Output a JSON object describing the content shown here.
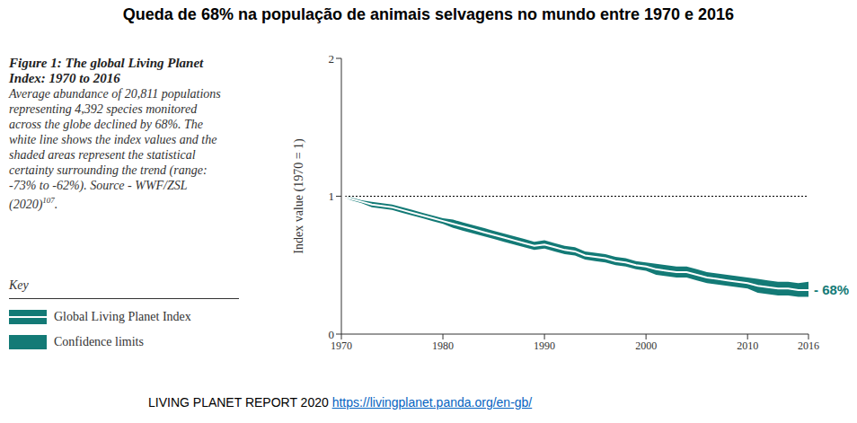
{
  "chart_data": {
    "type": "line",
    "title": "Queda de 68% na população de animais selvagens no mundo entre 1970 e 2016",
    "caption": {
      "heading": "Figure 1: The global Living Planet Index: 1970 to 2016",
      "text": "Average abundance of 20,811 populations representing 4,392 species monitored across the globe declined by 68%. The white line shows the index values and the shaded areas represent the statistical certainty surrounding the trend (range: -73% to -62%). Source - WWF/ZSL (2020)",
      "reference": "107",
      "end": "."
    },
    "key_title": "Key",
    "y_label": "Index value (1970 = 1)",
    "x": [
      1970,
      1971,
      1972,
      1973,
      1974,
      1975,
      1976,
      1977,
      1978,
      1979,
      1980,
      1981,
      1982,
      1983,
      1984,
      1985,
      1986,
      1987,
      1988,
      1989,
      1990,
      1991,
      1992,
      1993,
      1994,
      1995,
      1996,
      1997,
      1998,
      1999,
      2000,
      2001,
      2002,
      2003,
      2004,
      2005,
      2006,
      2007,
      2008,
      2009,
      2010,
      2011,
      2012,
      2013,
      2014,
      2015,
      2016
    ],
    "series": [
      {
        "name": "Global Living Planet Index",
        "type": "line",
        "color": "#ffffff",
        "values": [
          1.0,
          0.98,
          0.96,
          0.94,
          0.93,
          0.92,
          0.9,
          0.88,
          0.86,
          0.84,
          0.82,
          0.8,
          0.78,
          0.76,
          0.74,
          0.72,
          0.7,
          0.68,
          0.66,
          0.64,
          0.65,
          0.63,
          0.61,
          0.6,
          0.57,
          0.56,
          0.55,
          0.53,
          0.52,
          0.5,
          0.49,
          0.47,
          0.46,
          0.45,
          0.45,
          0.43,
          0.41,
          0.4,
          0.39,
          0.38,
          0.37,
          0.35,
          0.34,
          0.33,
          0.33,
          0.32,
          0.32
        ]
      },
      {
        "name": "Confidence limits",
        "type": "area",
        "color": "#137a76",
        "lower": [
          1.0,
          0.97,
          0.95,
          0.92,
          0.91,
          0.9,
          0.88,
          0.86,
          0.84,
          0.82,
          0.8,
          0.77,
          0.75,
          0.73,
          0.71,
          0.69,
          0.67,
          0.65,
          0.63,
          0.61,
          0.62,
          0.6,
          0.58,
          0.57,
          0.54,
          0.53,
          0.52,
          0.5,
          0.49,
          0.47,
          0.46,
          0.43,
          0.42,
          0.41,
          0.41,
          0.39,
          0.37,
          0.36,
          0.35,
          0.34,
          0.33,
          0.3,
          0.29,
          0.28,
          0.28,
          0.27,
          0.27
        ],
        "upper": [
          1.0,
          0.99,
          0.97,
          0.96,
          0.95,
          0.94,
          0.92,
          0.9,
          0.88,
          0.86,
          0.84,
          0.83,
          0.81,
          0.79,
          0.77,
          0.75,
          0.73,
          0.71,
          0.69,
          0.67,
          0.68,
          0.66,
          0.64,
          0.63,
          0.6,
          0.59,
          0.58,
          0.56,
          0.55,
          0.53,
          0.52,
          0.51,
          0.5,
          0.49,
          0.49,
          0.47,
          0.45,
          0.44,
          0.43,
          0.42,
          0.41,
          0.4,
          0.39,
          0.38,
          0.38,
          0.37,
          0.38
        ]
      }
    ],
    "xlim": [
      1970,
      2016
    ],
    "xticks": [
      1970,
      1980,
      1990,
      2000,
      2010,
      2016
    ],
    "ylim": [
      0,
      2
    ],
    "yticks": [
      0,
      1,
      2
    ],
    "reference_line": 1,
    "annotations": [
      {
        "text": "- 68%"
      }
    ],
    "source": {
      "text": "LIVING PLANET REPORT 2020",
      "url": "https://livingplanet.panda.org/en-gb/"
    }
  }
}
